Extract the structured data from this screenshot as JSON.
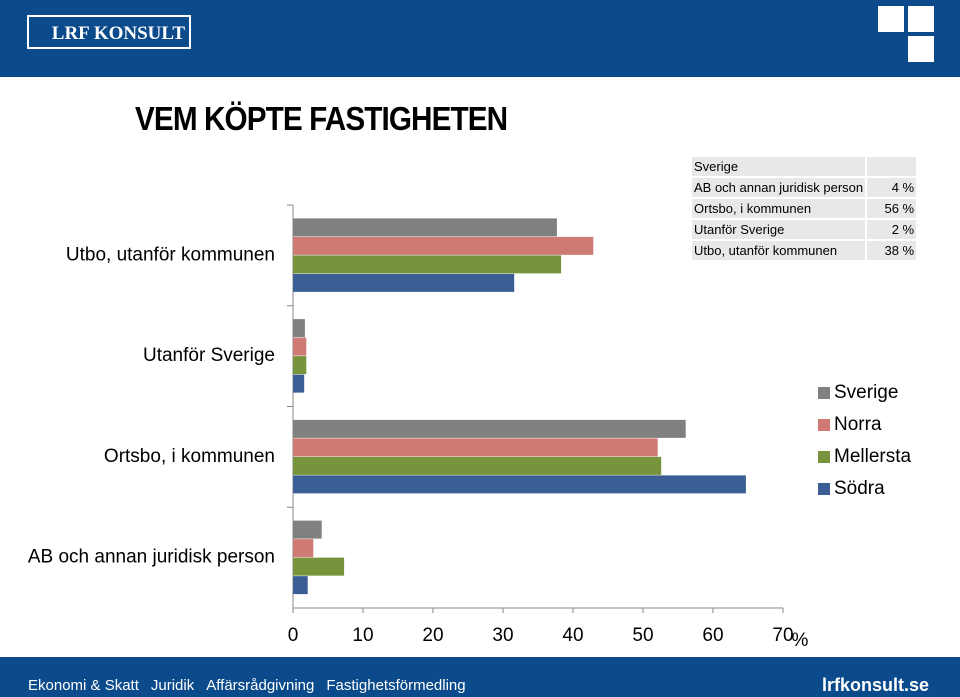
{
  "header": {
    "logo": "LRF KONSULT"
  },
  "title": "VEM KÖPTE FASTIGHETEN",
  "table": {
    "header": "Sverige",
    "rows": [
      [
        "AB och annan juridisk person",
        "4 %"
      ],
      [
        "Ortsbo, i kommunen",
        "56 %"
      ],
      [
        "Utanför Sverige",
        "2 %"
      ],
      [
        "Utbo, utanför kommunen",
        "38 %"
      ]
    ]
  },
  "chart_data": {
    "type": "bar",
    "orientation": "horizontal",
    "categories": [
      "AB och annan juridisk person",
      "Ortsbo, i kommunen",
      "Utanför Sverige",
      "Utbo, utanför kommunen"
    ],
    "series": [
      {
        "name": "Sverige",
        "color": "#808080",
        "values": [
          4.1,
          56.1,
          1.7,
          37.7
        ]
      },
      {
        "name": "Norra",
        "color": "#d07a76",
        "values": [
          2.9,
          52.1,
          1.9,
          42.9
        ]
      },
      {
        "name": "Mellersta",
        "color": "#77933c",
        "values": [
          7.3,
          52.6,
          1.9,
          38.3
        ]
      },
      {
        "name": "Södra",
        "color": "#3b5e94",
        "values": [
          2.1,
          64.7,
          1.6,
          31.6
        ]
      }
    ],
    "xlim": [
      0,
      70
    ],
    "xticks": [
      0,
      10,
      20,
      30,
      40,
      50,
      60,
      70
    ],
    "x_label": "%",
    "legend": "right"
  },
  "footer": {
    "links": [
      "Ekonomi & Skatt",
      "Juridik",
      "Affärsrådgivning",
      "Fastighetsförmedling"
    ],
    "site": "lrfkonsult.se"
  }
}
